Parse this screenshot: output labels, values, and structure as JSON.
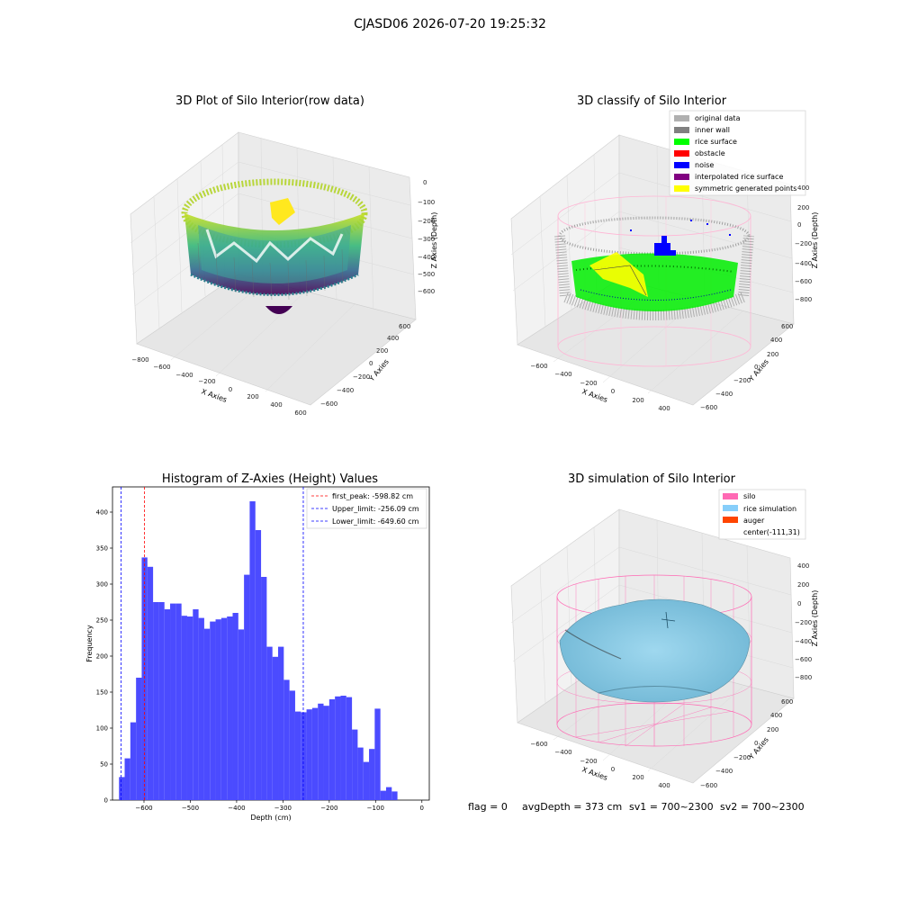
{
  "suptitle": "CJASD06 2026-07-20 19:25:32",
  "footer": {
    "flag": "flag = 0",
    "avg_depth": "avgDepth = 373 cm",
    "sv1": "sv1 = 700~2300",
    "sv2": "sv2 = 700~2300"
  },
  "colors": {
    "hist_bar": "#4b4bff",
    "peak_line": "#ff0000",
    "limit_line": "#0000ff",
    "silo": "#ff69b4",
    "rice_sim": "#87cefa",
    "auger": "#ff4500",
    "rice_surface": "#00ff00",
    "obstacle": "#ff0000",
    "noise": "#0000ff",
    "interp": "#800080",
    "sym": "#ffff00",
    "original": "#b0b0b0",
    "inner_wall": "#808080"
  },
  "panels": {
    "raw": {
      "title": "3D Plot of Silo Interior(row data)",
      "xlabel": "X Axies",
      "ylabel": "Y Axies",
      "zlabel": "Z Axies (Depth)",
      "xticks": [
        "−800",
        "−600",
        "−400",
        "−200",
        "0",
        "200",
        "400",
        "600"
      ],
      "yticks": [
        "−600",
        "−400",
        "−200",
        "0",
        "200",
        "400",
        "600"
      ],
      "zticks": [
        "0",
        "−100",
        "−200",
        "−300",
        "−400",
        "−500",
        "−600"
      ]
    },
    "classify": {
      "title": "3D classify of Silo Interior",
      "xlabel": "X Axies",
      "ylabel": "Y Axies",
      "zlabel": "Z Axies (Depth)",
      "xticks": [
        "−600",
        "−400",
        "−200",
        "0",
        "200",
        "400"
      ],
      "yticks": [
        "−600",
        "−400",
        "−200",
        "0",
        "200",
        "400",
        "600"
      ],
      "zticks": [
        "400",
        "200",
        "0",
        "−200",
        "−400",
        "−600",
        "−800"
      ],
      "legend": [
        {
          "label": "original data",
          "color": "#b0b0b0"
        },
        {
          "label": "inner wall",
          "color": "#808080"
        },
        {
          "label": "rice surface",
          "color": "#00ff00"
        },
        {
          "label": "obstacle",
          "color": "#ff0000"
        },
        {
          "label": "noise",
          "color": "#0000ff"
        },
        {
          "label": "interpolated rice surface",
          "color": "#800080"
        },
        {
          "label": "symmetric generated points",
          "color": "#ffff00"
        }
      ]
    },
    "simulation": {
      "title": "3D simulation of Silo Interior",
      "xlabel": "X Axies",
      "ylabel": "Y Axies",
      "zlabel": "Z Axies (Depth)",
      "xticks": [
        "−600",
        "−400",
        "−200",
        "0",
        "200",
        "400"
      ],
      "yticks": [
        "−600",
        "−400",
        "−200",
        "0",
        "200",
        "400",
        "600"
      ],
      "zticks": [
        "400",
        "200",
        "0",
        "−200",
        "−400",
        "−600",
        "−800"
      ],
      "legend": [
        {
          "label": "silo",
          "color": "#ff69b4"
        },
        {
          "label": "rice simulation",
          "color": "#87cefa"
        },
        {
          "label": "auger",
          "color": "#ff4500"
        },
        {
          "label": "center(-111,31)",
          "color": ""
        }
      ]
    }
  },
  "chart_data": {
    "type": "bar",
    "title": "Histogram of Z-Axies (Height) Values",
    "xlabel": "Depth (cm)",
    "ylabel": "Frequency",
    "xlim": [
      -668,
      16
    ],
    "ylim": [
      0,
      435
    ],
    "xticks": [
      -600,
      -500,
      -400,
      -300,
      -200,
      -100,
      0
    ],
    "xtick_labels": [
      "−600",
      "−500",
      "−400",
      "−300",
      "−200",
      "−100",
      "0"
    ],
    "yticks": [
      0,
      50,
      100,
      150,
      200,
      250,
      300,
      350,
      400
    ],
    "bin_start": -654,
    "bin_width": 12.27,
    "values": [
      32,
      58,
      108,
      170,
      337,
      324,
      275,
      275,
      265,
      273,
      273,
      256,
      255,
      265,
      253,
      238,
      248,
      251,
      253,
      255,
      260,
      237,
      313,
      415,
      375,
      310,
      213,
      199,
      213,
      167,
      152,
      123,
      122,
      126,
      128,
      134,
      131,
      140,
      144,
      145,
      143,
      98,
      73,
      53,
      71,
      127,
      13,
      18,
      12,
      0
    ],
    "lines": [
      {
        "label": "first_peak: -598.82 cm",
        "x": -598.82,
        "color": "#ff0000"
      },
      {
        "label": "Upper_limit: -256.09 cm",
        "x": -256.09,
        "color": "#0000ff"
      },
      {
        "label": "Lower_limit: -649.60 cm",
        "x": -649.6,
        "color": "#0000ff"
      }
    ]
  }
}
